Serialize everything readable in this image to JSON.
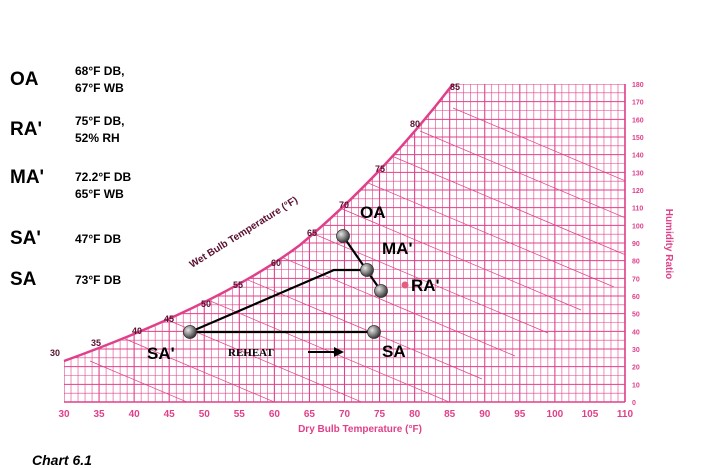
{
  "legend": [
    {
      "abbr": "OA",
      "desc": "68°F DB,\n67°F WB"
    },
    {
      "abbr": "RA'",
      "desc": "75°F DB,\n52% RH"
    },
    {
      "abbr": "MA'",
      "desc": "72.2°F DB\n65°F WB"
    },
    {
      "abbr": "SA'",
      "desc": "47°F DB"
    },
    {
      "abbr": "SA",
      "desc": "73°F DB"
    }
  ],
  "chart": {
    "xlabel": "Dry Bulb Temperature (°F)",
    "ylabel": "Humidity Ratio",
    "saturation_label": "Wet Bulb Temperature (°F)",
    "x_ticks": [
      "30",
      "35",
      "40",
      "45",
      "50",
      "55",
      "60",
      "65",
      "70",
      "75",
      "80",
      "85",
      "90",
      "95",
      "100",
      "105",
      "110"
    ],
    "y_ticks": [
      "180",
      "170",
      "160",
      "150",
      "140",
      "130",
      "120",
      "110",
      "100",
      "90",
      "80",
      "70",
      "60",
      "50",
      "40",
      "30",
      "20",
      "10",
      "0"
    ],
    "wb_ticks": [
      "30",
      "35",
      "40",
      "45",
      "50",
      "55",
      "60",
      "65",
      "70",
      "75",
      "80",
      "85"
    ],
    "grid_color": "#e0408a"
  },
  "points": {
    "oa": "OA",
    "ma": "MA'",
    "ra": "RA'",
    "sa_prime": "SA'",
    "sa": "SA"
  },
  "reheat_label": "REHEAT",
  "caption": "Chart 6.1"
}
